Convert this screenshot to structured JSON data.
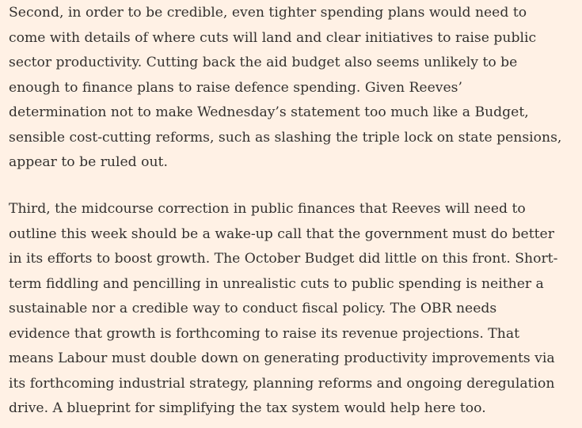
{
  "article": {
    "paragraphs": [
      {
        "lines": [
          "Second, in order to be credible, even tighter spending plans would need to",
          "come with details of where cuts will land and clear initiatives to raise public",
          "sector productivity. Cutting back the aid budget also seems unlikely to be",
          "enough to finance plans to raise defence spending. Given Reeves’",
          "determination not to make Wednesday’s statement too much like a Budget,",
          "sensible cost-cutting reforms, such as slashing the triple lock on state pensions,",
          "appear to be ruled out."
        ]
      },
      {
        "lines": [
          "Third, the midcourse correction in public finances that Reeves will need to",
          "outline this week should be a wake-up call that the government must do better",
          "in its efforts to boost growth. The October Budget did little on this front. Short-",
          "term fiddling and pencilling in unrealistic cuts to public spending is neither a",
          "sustainable nor a credible way to conduct fiscal policy. The OBR needs",
          "evidence that growth is forthcoming to raise its revenue projections. That",
          "means Labour must double down on generating productivity improvements via",
          "its forthcoming industrial strategy, planning reforms and ongoing deregulation",
          "drive. A blueprint for simplifying the tax system would help here too."
        ]
      }
    ]
  },
  "colors": {
    "background": "#fff1e5",
    "text": "#33302e"
  }
}
